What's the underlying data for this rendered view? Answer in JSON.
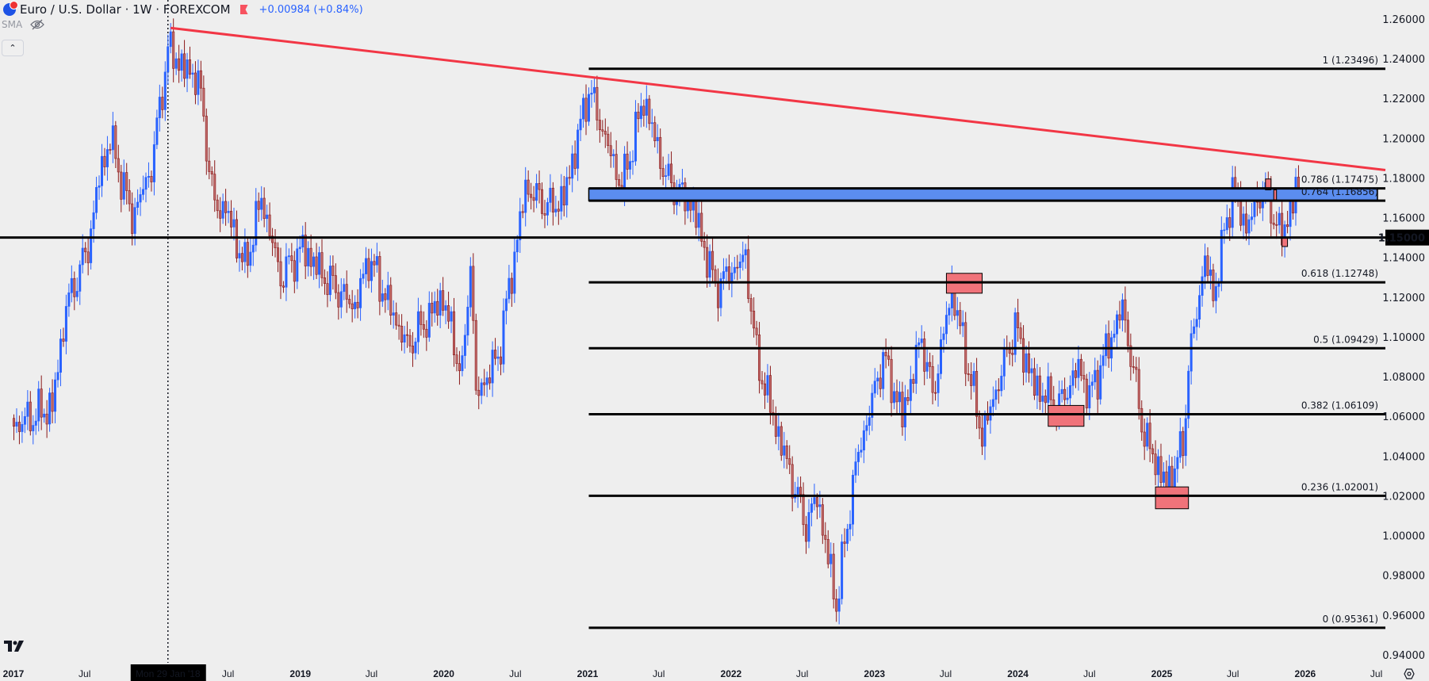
{
  "header": {
    "title": "Euro / U.S. Dollar · 1W · FOREXCOM",
    "change": "+0.00984 (+0.84%)",
    "indicator": "SMA",
    "collapse_icon": "chevron-up-icon"
  },
  "colors": {
    "background": "#eeeeee",
    "up_candle": "#2962ff",
    "down_candle": "#8b1a1a",
    "trendline": "#f23645",
    "fib_line": "#000000",
    "zone_fill": "#5b8def",
    "box_fill": "#f0737a",
    "change_text": "#2962ff"
  },
  "price_axis": {
    "ticks": [
      "1.26000",
      "1.24000",
      "1.22000",
      "1.20000",
      "1.18000",
      "1.16000",
      "1.14000",
      "1.12000",
      "1.10000",
      "1.08000",
      "1.06000",
      "1.04000",
      "1.02000",
      "1.00000",
      "0.98000",
      "0.96000",
      "0.94000"
    ],
    "highlight_label": "1.15000"
  },
  "time_axis": {
    "ticks": [
      {
        "label": "2017",
        "date": "2017-01-01"
      },
      {
        "label": "Jul",
        "date": "2017-07-01"
      },
      {
        "label": "Jul",
        "date": "2018-07-01"
      },
      {
        "label": "2019",
        "date": "2019-01-01"
      },
      {
        "label": "Jul",
        "date": "2019-07-01"
      },
      {
        "label": "2020",
        "date": "2020-01-01"
      },
      {
        "label": "Jul",
        "date": "2020-07-01"
      },
      {
        "label": "2021",
        "date": "2021-01-01"
      },
      {
        "label": "Jul",
        "date": "2021-07-01"
      },
      {
        "label": "2022",
        "date": "2022-01-01"
      },
      {
        "label": "Jul",
        "date": "2022-07-01"
      },
      {
        "label": "2023",
        "date": "2023-01-01"
      },
      {
        "label": "Jul",
        "date": "2023-07-01"
      },
      {
        "label": "2024",
        "date": "2024-01-01"
      },
      {
        "label": "Jul",
        "date": "2024-07-01"
      },
      {
        "label": "2025",
        "date": "2025-01-01"
      },
      {
        "label": "Jul",
        "date": "2025-07-01"
      },
      {
        "label": "2026",
        "date": "2026-01-01"
      },
      {
        "label": "Jul",
        "date": "2026-07-01"
      }
    ],
    "crosshair": {
      "label": "Mon 29 Jan '18",
      "date": "2018-01-29"
    }
  },
  "chart_data": {
    "type": "candlestick",
    "symbol": "Euro / U.S. Dollar",
    "interval": "1W",
    "ylim": [
      0.94,
      1.26
    ],
    "xlim": [
      "2017-01-01",
      "2026-08-01"
    ],
    "grid": false,
    "approx_closes": [
      [
        "2017-01-02",
        1.055
      ],
      [
        "2017-02-20",
        1.06
      ],
      [
        "2017-04-10",
        1.065
      ],
      [
        "2017-05-15",
        1.115
      ],
      [
        "2017-07-10",
        1.145
      ],
      [
        "2017-08-07",
        1.18
      ],
      [
        "2017-09-04",
        1.2
      ],
      [
        "2017-10-30",
        1.16
      ],
      [
        "2017-12-18",
        1.185
      ],
      [
        "2018-01-29",
        1.245
      ],
      [
        "2018-03-12",
        1.235
      ],
      [
        "2018-04-16",
        1.23
      ],
      [
        "2018-05-28",
        1.165
      ],
      [
        "2018-06-25",
        1.165
      ],
      [
        "2018-08-13",
        1.135
      ],
      [
        "2018-09-24",
        1.17
      ],
      [
        "2018-11-12",
        1.13
      ],
      [
        "2019-01-07",
        1.145
      ],
      [
        "2019-03-04",
        1.13
      ],
      [
        "2019-05-20",
        1.115
      ],
      [
        "2019-06-24",
        1.14
      ],
      [
        "2019-09-30",
        1.095
      ],
      [
        "2019-12-30",
        1.12
      ],
      [
        "2020-02-17",
        1.08
      ],
      [
        "2020-03-09",
        1.14
      ],
      [
        "2020-03-23",
        1.07
      ],
      [
        "2020-05-18",
        1.09
      ],
      [
        "2020-07-27",
        1.175
      ],
      [
        "2020-09-28",
        1.165
      ],
      [
        "2020-11-02",
        1.17
      ],
      [
        "2021-01-04",
        1.225
      ],
      [
        "2021-03-29",
        1.175
      ],
      [
        "2021-05-24",
        1.22
      ],
      [
        "2021-07-19",
        1.18
      ],
      [
        "2021-09-27",
        1.165
      ],
      [
        "2021-11-22",
        1.125
      ],
      [
        "2022-02-07",
        1.14
      ],
      [
        "2022-03-07",
        1.09
      ],
      [
        "2022-04-25",
        1.055
      ],
      [
        "2022-07-11",
        1.005
      ],
      [
        "2022-08-08",
        1.02
      ],
      [
        "2022-09-26",
        0.965
      ],
      [
        "2022-11-14",
        1.035
      ],
      [
        "2023-01-23",
        1.09
      ],
      [
        "2023-03-13",
        1.06
      ],
      [
        "2023-05-01",
        1.1
      ],
      [
        "2023-05-29",
        1.07
      ],
      [
        "2023-07-17",
        1.125
      ],
      [
        "2023-10-02",
        1.05
      ],
      [
        "2023-12-25",
        1.105
      ],
      [
        "2024-02-12",
        1.075
      ],
      [
        "2024-04-15",
        1.065
      ],
      [
        "2024-06-03",
        1.085
      ],
      [
        "2024-07-01",
        1.07
      ],
      [
        "2024-09-23",
        1.115
      ],
      [
        "2024-11-18",
        1.05
      ],
      [
        "2025-01-13",
        1.025
      ],
      [
        "2025-02-24",
        1.045
      ],
      [
        "2025-03-10",
        1.085
      ],
      [
        "2025-04-21",
        1.14
      ],
      [
        "2025-05-12",
        1.12
      ],
      [
        "2025-06-30",
        1.175
      ],
      [
        "2025-08-04",
        1.155
      ],
      [
        "2025-09-15",
        1.175
      ],
      [
        "2025-11-03",
        1.15
      ],
      [
        "2025-12-08",
        1.174
      ]
    ],
    "annotations": {
      "trendline": [
        [
          "2018-02-05",
          1.2555
        ],
        [
          "2026-08-01",
          1.184
        ]
      ],
      "horizontal_level": 1.15,
      "fib_retracement": {
        "start_date": "2021-01-04",
        "levels": [
          {
            "ratio": "1",
            "label": "1 (1.23496)",
            "value": 1.23496
          },
          {
            "ratio": "0.786",
            "label": "0.786 (1.17475)",
            "value": 1.17475
          },
          {
            "ratio": "0.764",
            "label": "0.764 (1.16856)",
            "value": 1.16856
          },
          {
            "ratio": "0.618",
            "label": "0.618 (1.12748)",
            "value": 1.12748
          },
          {
            "ratio": "0.5",
            "label": "0.5 (1.09429)",
            "value": 1.09429
          },
          {
            "ratio": "0.382",
            "label": "0.382 (1.06109)",
            "value": 1.06109
          },
          {
            "ratio": "0.236",
            "label": "0.236 (1.02001)",
            "value": 1.02001
          },
          {
            "ratio": "0",
            "label": "0 (0.95361)",
            "value": 0.95361
          }
        ]
      },
      "highlight_boxes": [
        {
          "from": "2023-07-03",
          "to": "2023-10-02",
          "top": 1.132,
          "bottom": 1.122
        },
        {
          "from": "2024-03-18",
          "to": "2024-06-17",
          "top": 1.0655,
          "bottom": 1.055
        },
        {
          "from": "2024-12-16",
          "to": "2025-03-10",
          "top": 1.0245,
          "bottom": 1.0135
        },
        {
          "from": "2025-09-22",
          "to": "2025-10-06",
          "top": 1.1795,
          "bottom": 1.174
        },
        {
          "from": "2025-10-13",
          "to": "2025-10-20",
          "top": 1.174,
          "bottom": 1.169
        },
        {
          "from": "2025-11-03",
          "to": "2025-11-17",
          "top": 1.15,
          "bottom": 1.1455
        }
      ]
    }
  }
}
